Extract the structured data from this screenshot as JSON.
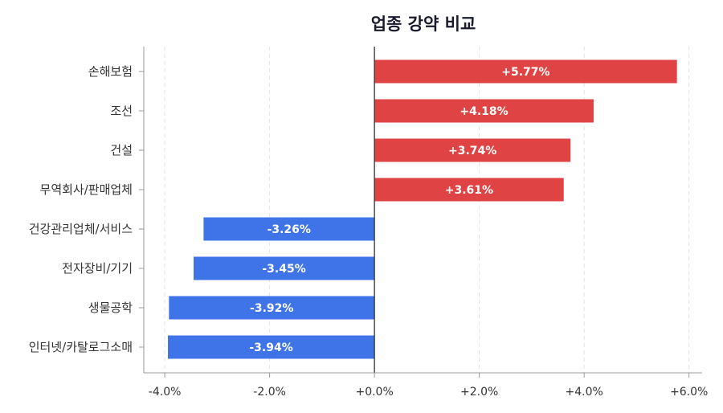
{
  "chart_data": {
    "type": "bar",
    "orientation": "horizontal",
    "title": "업종 강약 비교",
    "categories": [
      "손해보험",
      "조선",
      "건설",
      "무역회사/판매업체",
      "건강관리업체/서비스",
      "전자장비/기기",
      "생물공학",
      "인터넷/카탈로그소매"
    ],
    "values": [
      5.77,
      4.18,
      3.74,
      3.61,
      -3.26,
      -3.45,
      -3.92,
      -3.94
    ],
    "data_labels": [
      "+5.77%",
      "+4.18%",
      "+3.74%",
      "+3.61%",
      "-3.26%",
      "-3.45%",
      "-3.92%",
      "-3.94%"
    ],
    "xlim": [
      -4.4,
      6.25
    ],
    "xticks": [
      -4,
      -2,
      0,
      2,
      4,
      6
    ],
    "xtick_labels": [
      "-4.0%",
      "-2.0%",
      "+0.0%",
      "+2.0%",
      "+4.0%",
      "+6.0%"
    ],
    "xlabel": "",
    "ylabel": "",
    "grid": "vertical dashed",
    "colors": {
      "positive": "#e04343",
      "negative": "#3f74e8"
    }
  }
}
